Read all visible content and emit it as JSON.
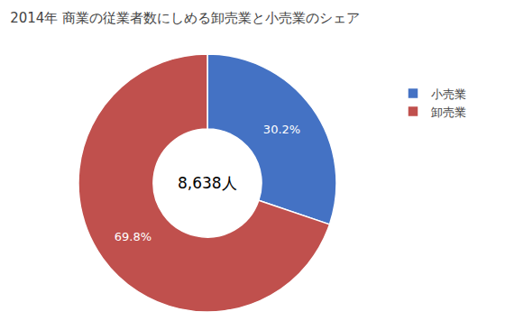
{
  "chart_data": {
    "type": "donut",
    "title": "2014年 商業の従業者数にしめる卸売業と小売業のシェア",
    "categories": [
      "小売業",
      "卸売業"
    ],
    "values": [
      30.2,
      69.8
    ],
    "value_labels": [
      "30.2%",
      "69.8%"
    ],
    "data_labels": true,
    "colors": [
      "#4472C4",
      "#C0504D"
    ],
    "annotations": [
      "8,638人"
    ],
    "legend": "right"
  }
}
